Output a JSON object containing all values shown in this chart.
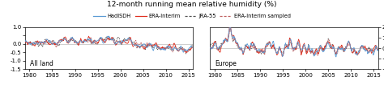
{
  "title": "12-month running mean relative humidity (%)",
  "title_fontsize": 6.5,
  "legend_entries": [
    "HadISDH",
    "ERA-Interim",
    "JRA-55",
    "ERA-Interim sampled"
  ],
  "legend_colors": [
    "#5b9bd5",
    "#e03020",
    "#555555",
    "#c06060"
  ],
  "legend_styles": [
    "-",
    "-",
    "--",
    "--"
  ],
  "panel1_label": "All land",
  "panel2_label": "Europe",
  "xlim": [
    1979,
    2016
  ],
  "ylim1": [
    -1.5,
    1.0
  ],
  "ylim2": [
    -2.0,
    2.0
  ],
  "yticks1": [
    -1.5,
    -1.0,
    -0.5,
    0.0,
    0.5,
    1.0
  ],
  "yticks2": [
    -2.0,
    -1.0,
    0.0,
    1.0,
    2.0
  ],
  "xticks": [
    1980,
    1985,
    1990,
    1995,
    2000,
    2005,
    2010,
    2015
  ],
  "tick_fontsize": 5.0,
  "label_fontsize": 5.5,
  "line_width": 0.6,
  "background_color": "#ffffff"
}
